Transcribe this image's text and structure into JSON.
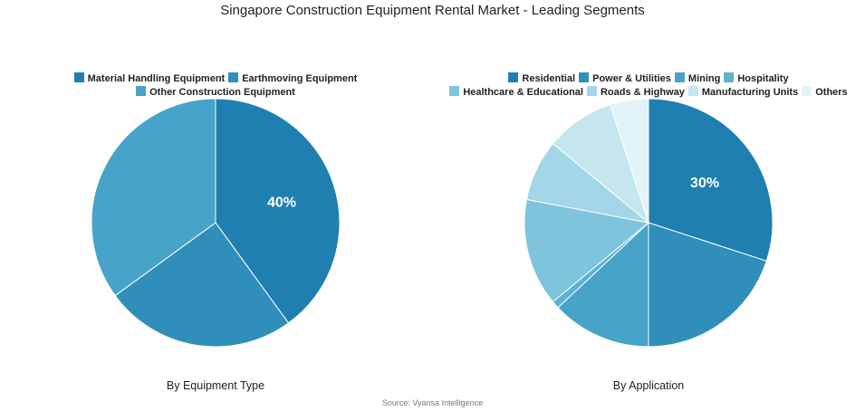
{
  "title": "Singapore Construction Equipment Rental Market - Leading Segments",
  "source": "Source: Vyansa Intelligence",
  "chart_data": [
    {
      "type": "pie",
      "subtitle": "By Equipment Type",
      "legend_position": "top",
      "labels": [
        "Material Handling Equipment",
        "Earthmoving Equipment",
        "Other Construction Equipment"
      ],
      "values": [
        40,
        25,
        35
      ],
      "colors": [
        "#1f7fb0",
        "#2f8fba",
        "#47a3c8"
      ],
      "data_labels": [
        "40%",
        "",
        ""
      ]
    },
    {
      "type": "pie",
      "subtitle": "By Application",
      "legend_position": "top",
      "labels": [
        "Residential",
        "Power & Utilities",
        "Mining",
        "Hospitality",
        "Healthcare & Educational",
        "Roads & Highway",
        "Manufacturing Units",
        "Others"
      ],
      "values": [
        30,
        20,
        13,
        1,
        14,
        8,
        9,
        5
      ],
      "colors": [
        "#1f7fb0",
        "#2f8fba",
        "#47a3c8",
        "#5fb1d0",
        "#7ec4dc",
        "#a3d6e6",
        "#c4e7ef",
        "#e3f4f8"
      ],
      "data_labels": [
        "30%",
        "",
        "",
        "",
        "",
        "",
        "",
        ""
      ]
    }
  ]
}
